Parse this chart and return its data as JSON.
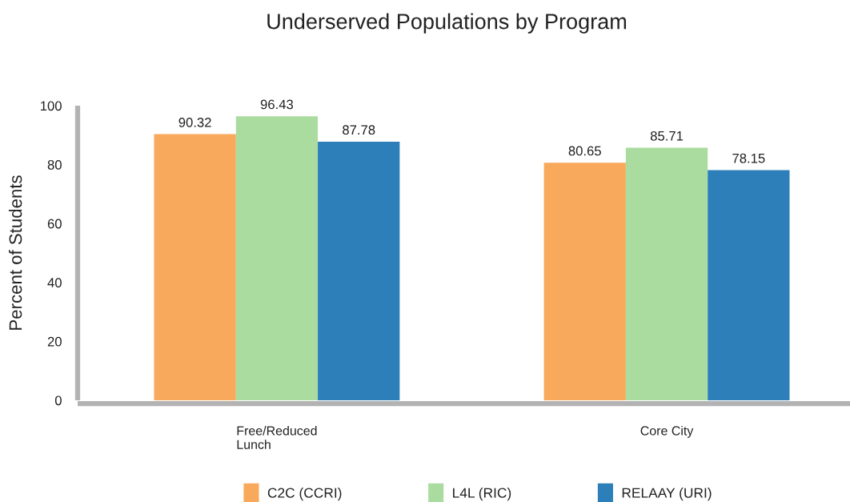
{
  "chart_data": {
    "type": "bar",
    "title": "Underserved Populations by Program",
    "ylabel": "Percent of Students",
    "categories": [
      "Free/Reduced\nLunch",
      "Core City"
    ],
    "series": [
      {
        "name": "C2C (CCRI)",
        "color": "#f9a95b",
        "values": [
          90.32,
          80.65
        ]
      },
      {
        "name": "L4L (RIC)",
        "color": "#aadca0",
        "values": [
          96.43,
          85.71
        ]
      },
      {
        "name": "RELAAY (URI)",
        "color": "#2c7fb8",
        "values": [
          87.78,
          78.15
        ]
      }
    ],
    "ylim": [
      0,
      100
    ],
    "yticks": [
      0,
      20,
      40,
      60,
      80,
      100
    ],
    "data_labels": true,
    "legend": "bottom",
    "grid": false
  }
}
